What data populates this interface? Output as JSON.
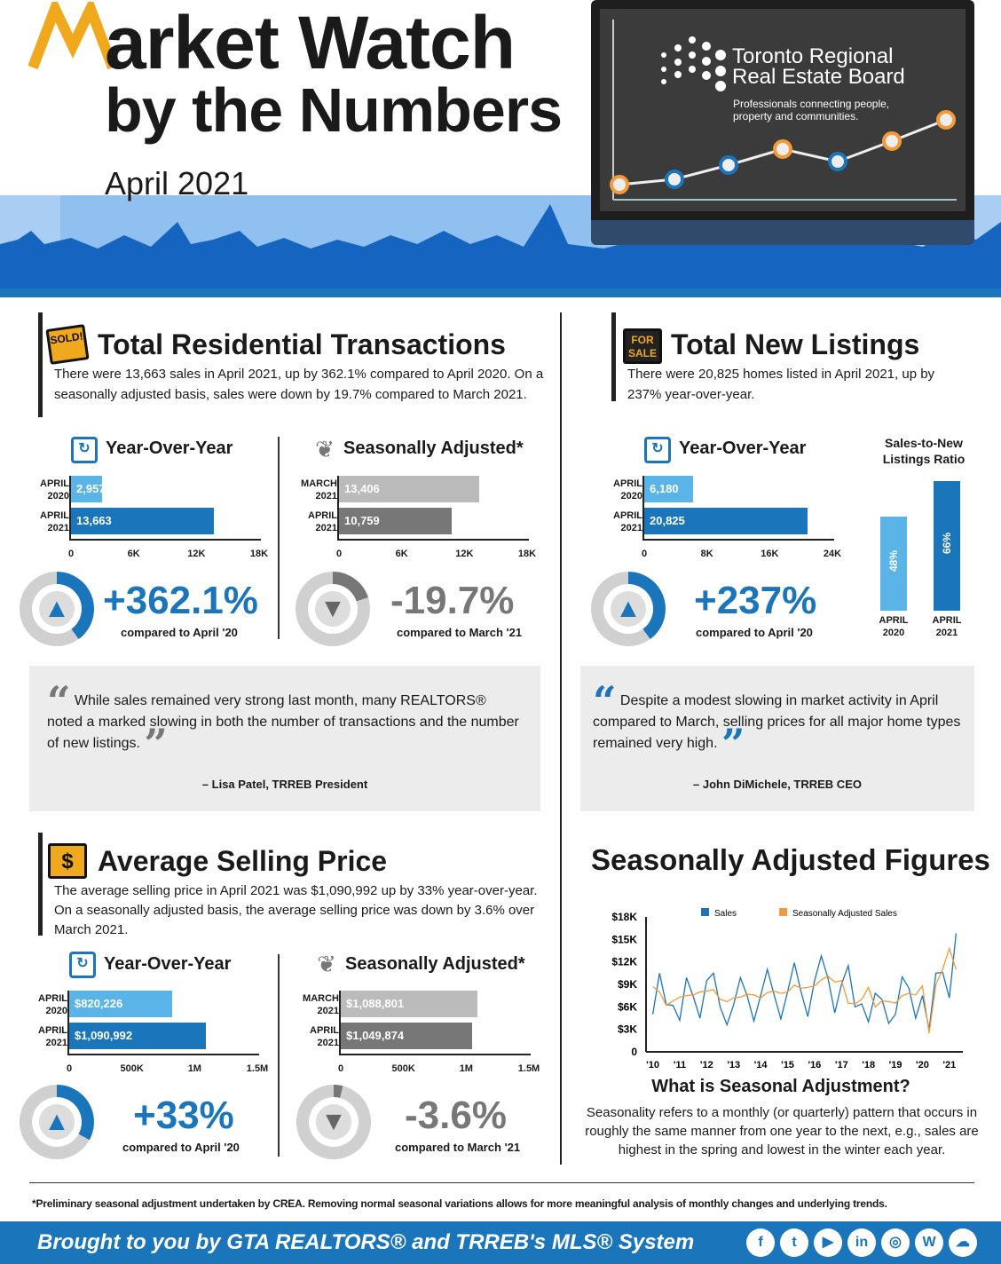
{
  "header": {
    "title_line1": "arket Watch",
    "title_m": "M",
    "title_line2": "by the Numbers",
    "date": "April 2021",
    "brand_line1": "Toronto Regional",
    "brand_line2": "Real Estate Board",
    "brand_tag1": "Professionals connecting people,",
    "brand_tag2": "property and communities."
  },
  "colors": {
    "blue": "#1b75bb",
    "light_blue": "#5ab4e8",
    "gray": "#777777",
    "light_gray": "#bbbbbb",
    "orange": "#f59a38",
    "gold": "#f0a81c"
  },
  "transactions": {
    "sign": "SOLD!",
    "title": "Total Residential Transactions",
    "text": "There were 13,663 sales in April 2021, up by 362.1% compared to April 2020. On a seasonally adjusted basis, sales were down by 19.7% compared to March 2021.",
    "yoy": {
      "heading": "Year-Over-Year",
      "rows": [
        {
          "l1": "APRIL",
          "l2": "2020",
          "value": 2957,
          "label": "2,957"
        },
        {
          "l1": "APRIL",
          "l2": "2021",
          "value": 13663,
          "label": "13,663"
        }
      ],
      "max": 18000,
      "ticks": [
        "0",
        "6K",
        "12K",
        "18K"
      ],
      "change": "+362.1%",
      "compare": "compared to April '20",
      "donut_fill": 0.4
    },
    "sa": {
      "heading": "Seasonally Adjusted*",
      "rows": [
        {
          "l1": "MARCH",
          "l2": "2021",
          "value": 13406,
          "label": "13,406"
        },
        {
          "l1": "APRIL",
          "l2": "2021",
          "value": 10759,
          "label": "10,759"
        }
      ],
      "max": 18000,
      "ticks": [
        "0",
        "6K",
        "12K",
        "18K"
      ],
      "change": "-19.7%",
      "compare": "compared to March '21",
      "donut_fill": 0.2
    }
  },
  "listings": {
    "sign": "FOR SALE",
    "title": "Total New Listings",
    "text": "There were 20,825 homes listed in April 2021, up by 237% year-over-year.",
    "yoy": {
      "heading": "Year-Over-Year",
      "rows": [
        {
          "l1": "APRIL",
          "l2": "2020",
          "value": 6180,
          "label": "6,180"
        },
        {
          "l1": "APRIL",
          "l2": "2021",
          "value": 20825,
          "label": "20,825"
        }
      ],
      "max": 24000,
      "ticks": [
        "0",
        "8K",
        "16K",
        "24K"
      ],
      "change": "+237%",
      "compare": "compared to April '20",
      "donut_fill": 0.4
    },
    "ratio": {
      "heading1": "Sales-to-New",
      "heading2": "Listings Ratio",
      "bars": [
        {
          "value": 48,
          "label": "48%",
          "l1": "APRIL",
          "l2": "2020"
        },
        {
          "value": 66,
          "label": "66%",
          "l1": "APRIL",
          "l2": "2021"
        }
      ]
    }
  },
  "quotes": [
    {
      "text": "While sales remained very strong last month, many REALTORS® noted a marked slowing in both the number of transactions and the number of new listings.",
      "author": "– Lisa Patel, TRREB President"
    },
    {
      "text": "Despite a modest slowing in market activity in April compared to March, selling prices for all major home types remained very high.",
      "author": "– John DiMichele, TRREB CEO"
    }
  ],
  "price": {
    "sign": "$",
    "title": "Average Selling Price",
    "text": "The average selling price in April 2021 was $1,090,992 up by 33% year-over-year. On a seasonally adjusted basis, the average selling price was down by 3.6% over March 2021.",
    "yoy": {
      "heading": "Year-Over-Year",
      "rows": [
        {
          "l1": "APRIL",
          "l2": "2020",
          "value": 820226,
          "label": "$820,226"
        },
        {
          "l1": "APRIL",
          "l2": "2021",
          "value": 1090992,
          "label": "$1,090,992"
        }
      ],
      "max": 1500000,
      "ticks": [
        "0",
        "500K",
        "1M",
        "1.5M"
      ],
      "change": "+33%",
      "compare": "compared to April '20",
      "donut_fill": 0.33
    },
    "sa": {
      "heading": "Seasonally Adjusted*",
      "rows": [
        {
          "l1": "MARCH",
          "l2": "2021",
          "value": 1088801,
          "label": "$1,088,801"
        },
        {
          "l1": "APRIL",
          "l2": "2021",
          "value": 1049874,
          "label": "$1,049,874"
        }
      ],
      "max": 1500000,
      "ticks": [
        "0",
        "500K",
        "1M",
        "1.5M"
      ],
      "change": "-3.6%",
      "compare": "compared to March '21",
      "donut_fill": 0.04
    }
  },
  "seasonal": {
    "title": "Seasonally Adjusted Figures",
    "q_title": "What is Seasonal Adjustment?",
    "q_text": "Seasonality refers to a monthly (or quarterly) pattern that occurs in roughly the same manner from one year to the next, e.g., sales are highest in the spring and lowest in the winter each year."
  },
  "chart_data": {
    "type": "line",
    "title": "Seasonally Adjusted Figures",
    "ylim": [
      0,
      18000
    ],
    "yticks": [
      "0",
      "$3K",
      "$6K",
      "$9K",
      "$12K",
      "$15K",
      "$18K"
    ],
    "ytick_values": [
      0,
      3000,
      6000,
      9000,
      12000,
      15000,
      18000
    ],
    "xticks": [
      "'10",
      "'11",
      "'12",
      "'13",
      "'14",
      "'15",
      "'16",
      "'17",
      "'18",
      "'19",
      "'20",
      "'21"
    ],
    "x": [
      2010.0,
      2010.25,
      2010.5,
      2010.75,
      2011.0,
      2011.25,
      2011.5,
      2011.75,
      2012.0,
      2012.25,
      2012.5,
      2012.75,
      2013.0,
      2013.25,
      2013.5,
      2013.75,
      2014.0,
      2014.25,
      2014.5,
      2014.75,
      2015.0,
      2015.25,
      2015.5,
      2015.75,
      2016.0,
      2016.25,
      2016.5,
      2016.75,
      2017.0,
      2017.25,
      2017.5,
      2017.75,
      2018.0,
      2018.25,
      2018.5,
      2018.75,
      2019.0,
      2019.25,
      2019.5,
      2019.75,
      2020.0,
      2020.25,
      2020.5,
      2020.75,
      2021.0,
      2021.25
    ],
    "series": [
      {
        "name": "Sales",
        "color": "#1b75bb",
        "values": [
          5000,
          10500,
          6300,
          6200,
          4200,
          9900,
          7400,
          4500,
          9500,
          10500,
          6000,
          3600,
          6300,
          9900,
          7500,
          4100,
          7500,
          11000,
          7600,
          4400,
          8000,
          11900,
          8000,
          4700,
          9500,
          12800,
          9800,
          5200,
          9000,
          11500,
          6000,
          6400,
          4000,
          7800,
          7000,
          3800,
          5000,
          10000,
          8500,
          4500,
          7500,
          3000,
          10500,
          10600,
          7200,
          15800
        ]
      },
      {
        "name": "Seasonally Adjusted Sales",
        "color": "#f59a38",
        "values": [
          8700,
          8000,
          6200,
          6800,
          7300,
          7500,
          7600,
          8000,
          8100,
          8300,
          7000,
          6700,
          7200,
          7300,
          7700,
          7600,
          7200,
          7900,
          8100,
          7800,
          8000,
          8900,
          8500,
          8600,
          8800,
          9600,
          10100,
          9300,
          9500,
          6500,
          6400,
          7000,
          8600,
          6000,
          6800,
          6700,
          6500,
          7500,
          7800,
          7600,
          8800,
          2500,
          9000,
          11000,
          13800,
          11000
        ]
      }
    ]
  },
  "footer": {
    "note": "*Preliminary seasonal adjustment undertaken by CREA. Removing normal seasonal variations allows for more meaningful analysis of monthly changes and underlying trends.",
    "brought": "Brought to you by GTA REALTORS® and TRREB's MLS® System",
    "social": [
      {
        "name": "facebook",
        "glyph": "f"
      },
      {
        "name": "twitter",
        "glyph": "t"
      },
      {
        "name": "youtube",
        "glyph": "▶"
      },
      {
        "name": "linkedin",
        "glyph": "in"
      },
      {
        "name": "instagram",
        "glyph": "◎"
      },
      {
        "name": "wordpress",
        "glyph": "W"
      },
      {
        "name": "soundcloud",
        "glyph": "☁"
      }
    ]
  }
}
